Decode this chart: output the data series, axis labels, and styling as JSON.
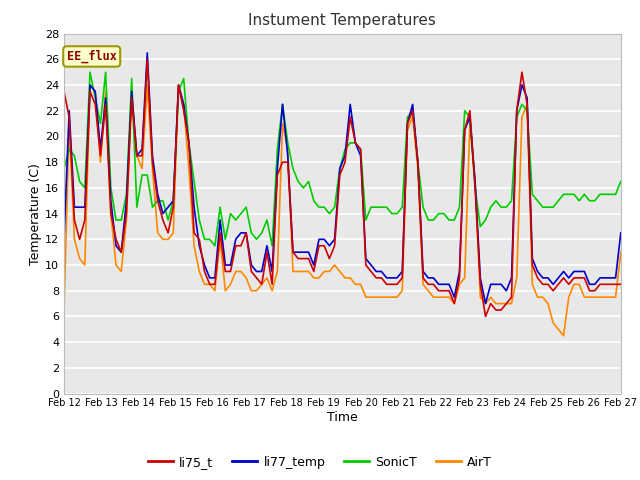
{
  "title": "Instument Temperatures",
  "xlabel": "Time",
  "ylabel": "Temperature (C)",
  "ylim": [
    0,
    28
  ],
  "yticks": [
    0,
    2,
    4,
    6,
    8,
    10,
    12,
    14,
    16,
    18,
    20,
    22,
    24,
    26,
    28
  ],
  "xtick_labels": [
    "Feb 12",
    "Feb 13",
    "Feb 14",
    "Feb 15",
    "Feb 16",
    "Feb 17",
    "Feb 18",
    "Feb 19",
    "Feb 20",
    "Feb 21",
    "Feb 22",
    "Feb 23",
    "Feb 24",
    "Feb 25",
    "Feb 26",
    "Feb 27"
  ],
  "fig_bg_color": "#ffffff",
  "plot_bg_color": "#e8e8e8",
  "annotation_text": "EE_flux",
  "annotation_color": "#8b0000",
  "annotation_bg": "#ffffcc",
  "annotation_edge": "#999900",
  "legend_entries": [
    "li75_t",
    "li77_temp",
    "SonicT",
    "AirT"
  ],
  "legend_colors": [
    "#cc0000",
    "#0000cc",
    "#00cc00",
    "#ff8800"
  ],
  "line_width": 1.2,
  "li75_t": [
    23.5,
    21.5,
    13.5,
    12.0,
    13.5,
    23.5,
    22.5,
    18.5,
    22.5,
    14.0,
    12.0,
    11.0,
    14.0,
    23.0,
    18.5,
    18.5,
    26.0,
    18.0,
    15.0,
    13.5,
    12.5,
    14.5,
    24.0,
    22.0,
    19.5,
    12.5,
    12.0,
    9.5,
    8.5,
    8.5,
    12.5,
    9.5,
    9.5,
    11.5,
    11.5,
    12.5,
    9.5,
    9.0,
    8.5,
    11.0,
    8.5,
    17.0,
    18.0,
    18.0,
    11.0,
    10.5,
    10.5,
    10.5,
    9.5,
    11.5,
    11.5,
    10.5,
    11.5,
    17.0,
    18.0,
    21.5,
    19.5,
    19.0,
    10.0,
    9.5,
    9.0,
    9.0,
    8.5,
    8.5,
    8.5,
    9.0,
    21.0,
    22.0,
    18.0,
    9.0,
    8.5,
    8.5,
    8.0,
    8.0,
    8.0,
    7.0,
    9.0,
    20.5,
    22.0,
    16.0,
    8.5,
    6.0,
    7.0,
    6.5,
    6.5,
    7.0,
    7.5,
    22.0,
    25.0,
    22.5,
    10.0,
    9.0,
    8.5,
    8.5,
    8.0,
    8.5,
    9.0,
    8.5,
    9.0,
    9.0,
    9.0,
    8.0,
    8.0,
    8.5,
    8.5,
    8.5,
    8.5,
    8.5
  ],
  "li77_temp": [
    12.0,
    22.0,
    14.5,
    14.5,
    14.5,
    24.0,
    23.5,
    19.0,
    23.0,
    15.0,
    11.5,
    11.0,
    15.0,
    23.5,
    18.5,
    19.0,
    26.5,
    18.5,
    15.5,
    14.0,
    14.5,
    15.0,
    24.0,
    22.5,
    19.5,
    14.5,
    11.5,
    10.0,
    9.0,
    9.0,
    13.5,
    10.0,
    10.0,
    12.0,
    12.5,
    12.5,
    10.0,
    9.5,
    9.5,
    11.5,
    9.5,
    17.5,
    22.5,
    18.5,
    11.0,
    11.0,
    11.0,
    11.0,
    10.0,
    12.0,
    12.0,
    11.5,
    12.0,
    17.5,
    18.5,
    22.5,
    19.5,
    18.5,
    10.5,
    10.0,
    9.5,
    9.5,
    9.0,
    9.0,
    9.0,
    9.5,
    21.0,
    22.5,
    18.0,
    9.5,
    9.0,
    9.0,
    8.5,
    8.5,
    8.5,
    7.5,
    9.5,
    20.5,
    21.5,
    16.5,
    9.0,
    7.0,
    8.5,
    8.5,
    8.5,
    8.0,
    9.0,
    22.0,
    24.0,
    23.0,
    10.5,
    9.5,
    9.0,
    9.0,
    8.5,
    9.0,
    9.5,
    9.0,
    9.5,
    9.5,
    9.5,
    8.5,
    8.5,
    9.0,
    9.0,
    9.0,
    9.0,
    12.5
  ],
  "SonicT": [
    17.5,
    19.0,
    18.5,
    16.5,
    16.0,
    25.0,
    23.0,
    21.0,
    25.0,
    16.0,
    13.5,
    13.5,
    15.5,
    24.5,
    14.5,
    17.0,
    17.0,
    14.5,
    15.0,
    15.0,
    13.5,
    15.0,
    23.5,
    24.5,
    19.5,
    16.5,
    13.5,
    12.0,
    12.0,
    11.5,
    14.5,
    12.0,
    14.0,
    13.5,
    14.0,
    14.5,
    12.5,
    12.0,
    12.5,
    13.5,
    11.5,
    19.0,
    22.5,
    19.5,
    17.5,
    16.5,
    16.0,
    16.5,
    15.0,
    14.5,
    14.5,
    14.0,
    14.5,
    17.5,
    19.0,
    19.5,
    19.5,
    19.0,
    13.5,
    14.5,
    14.5,
    14.5,
    14.5,
    14.0,
    14.0,
    14.5,
    21.5,
    22.0,
    18.0,
    14.5,
    13.5,
    13.5,
    14.0,
    14.0,
    13.5,
    13.5,
    14.5,
    22.0,
    21.5,
    16.0,
    13.0,
    13.5,
    14.5,
    15.0,
    14.5,
    14.5,
    15.0,
    21.5,
    22.5,
    22.0,
    15.5,
    15.0,
    14.5,
    14.5,
    14.5,
    15.0,
    15.5,
    15.5,
    15.5,
    15.0,
    15.5,
    15.0,
    15.0,
    15.5,
    15.5,
    15.5,
    15.5,
    16.5
  ],
  "AirT": [
    6.5,
    21.0,
    12.0,
    10.5,
    10.0,
    24.0,
    23.5,
    18.0,
    23.5,
    14.0,
    10.0,
    9.5,
    13.5,
    23.5,
    18.5,
    17.5,
    24.0,
    17.5,
    12.5,
    12.0,
    12.0,
    12.5,
    24.0,
    22.5,
    17.5,
    11.5,
    9.5,
    8.5,
    8.5,
    8.0,
    12.0,
    8.0,
    8.5,
    9.5,
    9.5,
    9.0,
    8.0,
    8.0,
    8.5,
    9.0,
    8.0,
    9.5,
    21.0,
    19.0,
    9.5,
    9.5,
    9.5,
    9.5,
    9.0,
    9.0,
    9.5,
    9.5,
    10.0,
    9.5,
    9.0,
    9.0,
    8.5,
    8.5,
    7.5,
    7.5,
    7.5,
    7.5,
    7.5,
    7.5,
    7.5,
    8.0,
    20.5,
    21.5,
    17.5,
    8.5,
    8.0,
    7.5,
    7.5,
    7.5,
    7.5,
    7.0,
    8.5,
    9.0,
    21.0,
    16.5,
    7.5,
    7.0,
    7.5,
    7.0,
    7.0,
    7.0,
    7.0,
    9.0,
    21.5,
    22.5,
    8.5,
    7.5,
    7.5,
    7.0,
    5.5,
    5.0,
    4.5,
    7.5,
    8.5,
    8.5,
    7.5,
    7.5,
    7.5,
    7.5,
    7.5,
    7.5,
    7.5,
    11.0
  ]
}
